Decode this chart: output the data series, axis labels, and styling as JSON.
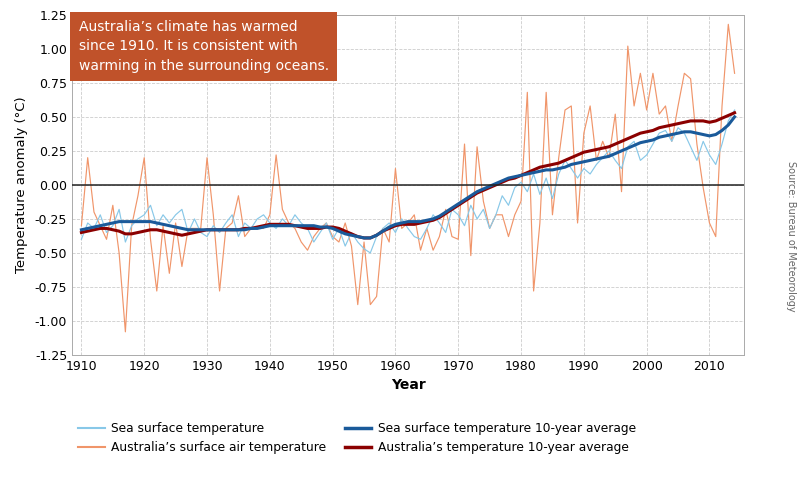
{
  "xlabel": "Year",
  "ylabel": "Temperature anomaly (°C)",
  "annotation_text": "Australia’s climate has warmed\nsince 1910. It is consistent with\nwarming in the surrounding oceans.",
  "annotation_bg": "#C0522A",
  "annotation_text_color": "#ffffff",
  "source_text": "Source: Bureau of Meteorology",
  "ylim": [
    -1.25,
    1.25
  ],
  "xlim": [
    1908.5,
    2015.5
  ],
  "yticks": [
    -1.25,
    -1.0,
    -0.75,
    -0.5,
    -0.25,
    0.0,
    0.25,
    0.5,
    0.75,
    1.0,
    1.25
  ],
  "xticks": [
    1910,
    1920,
    1930,
    1940,
    1950,
    1960,
    1970,
    1980,
    1990,
    2000,
    2010
  ],
  "color_sst_annual": "#88C8E8",
  "color_sst_smooth": "#1A5A9A",
  "color_air_annual": "#F0956A",
  "color_air_smooth": "#8B0000",
  "background_color": "#ffffff",
  "grid_color": "#cccccc",
  "years": [
    1910,
    1911,
    1912,
    1913,
    1914,
    1915,
    1916,
    1917,
    1918,
    1919,
    1920,
    1921,
    1922,
    1923,
    1924,
    1925,
    1926,
    1927,
    1928,
    1929,
    1930,
    1931,
    1932,
    1933,
    1934,
    1935,
    1936,
    1937,
    1938,
    1939,
    1940,
    1941,
    1942,
    1943,
    1944,
    1945,
    1946,
    1947,
    1948,
    1949,
    1950,
    1951,
    1952,
    1953,
    1954,
    1955,
    1956,
    1957,
    1958,
    1959,
    1960,
    1961,
    1962,
    1963,
    1964,
    1965,
    1966,
    1967,
    1968,
    1969,
    1970,
    1971,
    1972,
    1973,
    1974,
    1975,
    1976,
    1977,
    1978,
    1979,
    1980,
    1981,
    1982,
    1983,
    1984,
    1985,
    1986,
    1987,
    1988,
    1989,
    1990,
    1991,
    1992,
    1993,
    1994,
    1995,
    1996,
    1997,
    1998,
    1999,
    2000,
    2001,
    2002,
    2003,
    2004,
    2005,
    2006,
    2007,
    2008,
    2009,
    2010,
    2011,
    2012,
    2013,
    2014
  ],
  "sst_annual": [
    -0.4,
    -0.28,
    -0.32,
    -0.22,
    -0.35,
    -0.3,
    -0.18,
    -0.42,
    -0.3,
    -0.25,
    -0.22,
    -0.15,
    -0.3,
    -0.22,
    -0.28,
    -0.22,
    -0.18,
    -0.35,
    -0.25,
    -0.35,
    -0.38,
    -0.3,
    -0.35,
    -0.28,
    -0.22,
    -0.38,
    -0.28,
    -0.32,
    -0.25,
    -0.22,
    -0.28,
    -0.32,
    -0.25,
    -0.3,
    -0.22,
    -0.28,
    -0.32,
    -0.42,
    -0.35,
    -0.28,
    -0.4,
    -0.32,
    -0.45,
    -0.35,
    -0.42,
    -0.47,
    -0.5,
    -0.38,
    -0.32,
    -0.28,
    -0.35,
    -0.25,
    -0.32,
    -0.38,
    -0.4,
    -0.32,
    -0.22,
    -0.28,
    -0.35,
    -0.18,
    -0.22,
    -0.3,
    -0.15,
    -0.25,
    -0.18,
    -0.32,
    -0.22,
    -0.08,
    -0.15,
    -0.02,
    0.02,
    -0.05,
    0.08,
    -0.07,
    0.05,
    -0.1,
    0.08,
    0.18,
    0.12,
    0.05,
    0.12,
    0.08,
    0.15,
    0.2,
    0.25,
    0.18,
    0.12,
    0.28,
    0.32,
    0.18,
    0.22,
    0.3,
    0.38,
    0.4,
    0.32,
    0.42,
    0.38,
    0.28,
    0.18,
    0.32,
    0.22,
    0.15,
    0.3,
    0.47,
    0.55
  ],
  "sst_smooth": [
    -0.33,
    -0.32,
    -0.31,
    -0.3,
    -0.29,
    -0.28,
    -0.27,
    -0.27,
    -0.27,
    -0.27,
    -0.27,
    -0.27,
    -0.28,
    -0.29,
    -0.3,
    -0.31,
    -0.32,
    -0.33,
    -0.33,
    -0.33,
    -0.33,
    -0.33,
    -0.33,
    -0.33,
    -0.33,
    -0.33,
    -0.33,
    -0.32,
    -0.32,
    -0.31,
    -0.3,
    -0.3,
    -0.3,
    -0.3,
    -0.3,
    -0.3,
    -0.3,
    -0.3,
    -0.31,
    -0.31,
    -0.32,
    -0.34,
    -0.36,
    -0.37,
    -0.38,
    -0.39,
    -0.39,
    -0.37,
    -0.34,
    -0.31,
    -0.29,
    -0.28,
    -0.27,
    -0.27,
    -0.27,
    -0.26,
    -0.25,
    -0.23,
    -0.2,
    -0.17,
    -0.14,
    -0.11,
    -0.08,
    -0.05,
    -0.03,
    -0.01,
    0.01,
    0.03,
    0.05,
    0.06,
    0.07,
    0.08,
    0.09,
    0.1,
    0.11,
    0.11,
    0.12,
    0.13,
    0.15,
    0.16,
    0.17,
    0.18,
    0.19,
    0.2,
    0.21,
    0.23,
    0.25,
    0.27,
    0.29,
    0.31,
    0.32,
    0.33,
    0.35,
    0.36,
    0.37,
    0.38,
    0.39,
    0.39,
    0.38,
    0.37,
    0.36,
    0.37,
    0.4,
    0.44,
    0.5
  ],
  "air_annual": [
    -0.3,
    0.2,
    -0.2,
    -0.3,
    -0.4,
    -0.15,
    -0.5,
    -1.08,
    -0.3,
    -0.08,
    0.2,
    -0.4,
    -0.78,
    -0.3,
    -0.65,
    -0.28,
    -0.6,
    -0.32,
    -0.32,
    -0.32,
    0.2,
    -0.22,
    -0.78,
    -0.32,
    -0.28,
    -0.08,
    -0.38,
    -0.32,
    -0.32,
    -0.32,
    -0.22,
    0.22,
    -0.18,
    -0.28,
    -0.32,
    -0.42,
    -0.48,
    -0.38,
    -0.32,
    -0.28,
    -0.38,
    -0.42,
    -0.28,
    -0.45,
    -0.88,
    -0.42,
    -0.88,
    -0.82,
    -0.32,
    -0.42,
    0.12,
    -0.32,
    -0.28,
    -0.22,
    -0.48,
    -0.32,
    -0.48,
    -0.38,
    -0.18,
    -0.38,
    -0.4,
    0.3,
    -0.52,
    0.28,
    -0.12,
    -0.32,
    -0.22,
    -0.22,
    -0.38,
    -0.22,
    -0.12,
    0.68,
    -0.78,
    -0.28,
    0.68,
    -0.22,
    0.2,
    0.55,
    0.58,
    -0.28,
    0.38,
    0.58,
    0.18,
    0.32,
    0.2,
    0.52,
    -0.05,
    1.02,
    0.58,
    0.82,
    0.55,
    0.82,
    0.52,
    0.58,
    0.32,
    0.58,
    0.82,
    0.78,
    0.3,
    -0.02,
    -0.28,
    -0.38,
    0.58,
    1.18,
    0.82
  ],
  "air_smooth": [
    -0.35,
    -0.34,
    -0.33,
    -0.32,
    -0.32,
    -0.33,
    -0.34,
    -0.36,
    -0.36,
    -0.35,
    -0.34,
    -0.33,
    -0.33,
    -0.34,
    -0.35,
    -0.36,
    -0.37,
    -0.36,
    -0.35,
    -0.34,
    -0.33,
    -0.33,
    -0.33,
    -0.33,
    -0.33,
    -0.33,
    -0.32,
    -0.32,
    -0.31,
    -0.3,
    -0.29,
    -0.29,
    -0.29,
    -0.29,
    -0.3,
    -0.31,
    -0.32,
    -0.32,
    -0.32,
    -0.31,
    -0.31,
    -0.32,
    -0.34,
    -0.36,
    -0.38,
    -0.39,
    -0.39,
    -0.37,
    -0.34,
    -0.32,
    -0.3,
    -0.29,
    -0.29,
    -0.29,
    -0.28,
    -0.27,
    -0.26,
    -0.24,
    -0.21,
    -0.18,
    -0.15,
    -0.12,
    -0.09,
    -0.06,
    -0.04,
    -0.02,
    0.0,
    0.02,
    0.04,
    0.05,
    0.07,
    0.09,
    0.11,
    0.13,
    0.14,
    0.15,
    0.16,
    0.18,
    0.2,
    0.22,
    0.24,
    0.25,
    0.26,
    0.27,
    0.28,
    0.3,
    0.32,
    0.34,
    0.36,
    0.38,
    0.39,
    0.4,
    0.42,
    0.43,
    0.44,
    0.45,
    0.46,
    0.47,
    0.47,
    0.47,
    0.46,
    0.47,
    0.49,
    0.51,
    0.53
  ]
}
